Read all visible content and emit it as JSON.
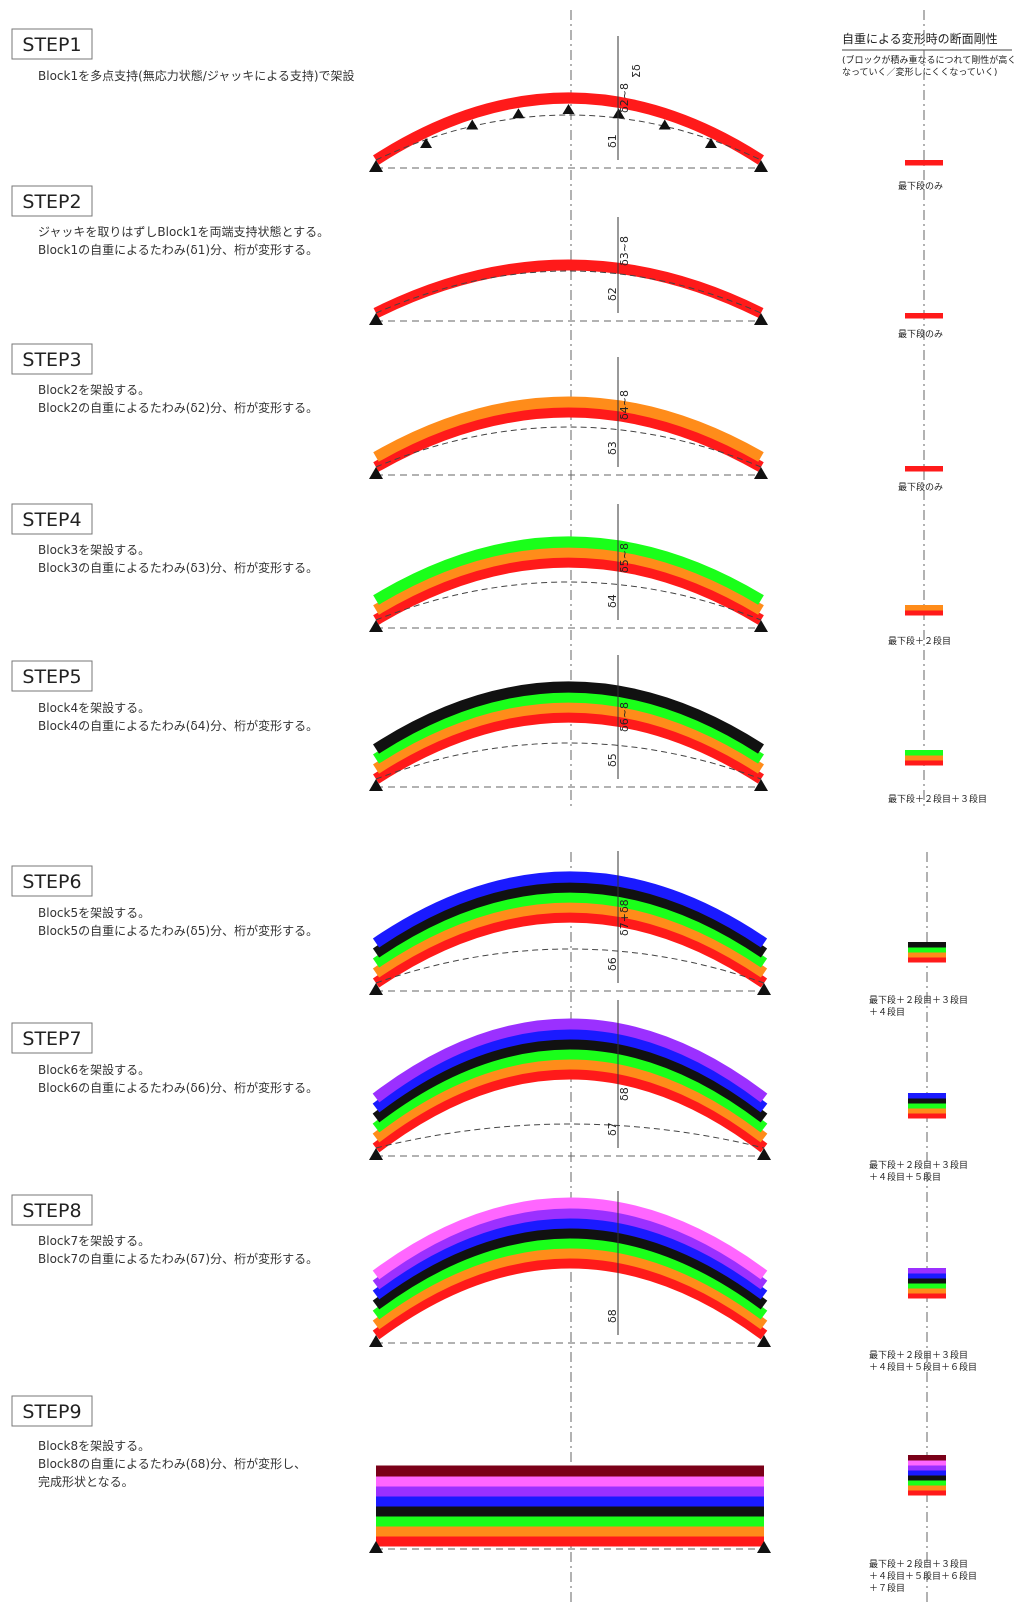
{
  "header": {
    "title": "自重による変形時の断面剛性",
    "note_lines": [
      "(ブロックが積み重なるにつれて剛性が高く",
      "なっていく／変形しにくくなっていく)"
    ]
  },
  "colors": {
    "block1": "#ff1a1a",
    "block2": "#ff8c1a",
    "block3": "#1aff1a",
    "block4": "#111111",
    "block5": "#1a1aff",
    "block6": "#9b30ff",
    "block7": "#ff66ff",
    "block8": "#7a0018"
  },
  "steps": [
    {
      "label": "STEP1",
      "desc": [
        "Block1を多点支持(無応力状態/ジャッキによる支持)で架設"
      ],
      "dims": [
        "δ1",
        "δ2~8",
        "Σδ"
      ],
      "section_label": [
        "最下段のみ"
      ]
    },
    {
      "label": "STEP2",
      "desc": [
        "ジャッキを取りはずしBlock1を両端支持状態とする。",
        "Block1の自重によるたわみ(δ1)分、桁が変形する。"
      ],
      "dims": [
        "δ2",
        "δ3~8"
      ],
      "section_label": [
        "最下段のみ"
      ]
    },
    {
      "label": "STEP3",
      "desc": [
        "Block2を架設する。",
        "Block2の自重によるたわみ(δ2)分、桁が変形する。"
      ],
      "dims": [
        "δ3",
        "δ4~8"
      ],
      "section_label": [
        "最下段のみ"
      ]
    },
    {
      "label": "STEP4",
      "desc": [
        "Block3を架設する。",
        "Block3の自重によるたわみ(δ3)分、桁が変形する。"
      ],
      "dims": [
        "δ4",
        "δ5~8"
      ],
      "section_label": [
        "最下段＋２段目"
      ]
    },
    {
      "label": "STEP5",
      "desc": [
        "Block4を架設する。",
        "Block4の自重によるたわみ(δ4)分、桁が変形する。"
      ],
      "dims": [
        "δ5",
        "δ6~8"
      ],
      "section_label": [
        "最下段＋２段目＋３段目"
      ]
    },
    {
      "label": "STEP6",
      "desc": [
        "Block5を架設する。",
        "Block5の自重によるたわみ(δ5)分、桁が変形する。"
      ],
      "dims": [
        "δ6",
        "δ7+δ8"
      ],
      "section_label": [
        "最下段＋２段目＋３段目",
        "＋４段目"
      ]
    },
    {
      "label": "STEP7",
      "desc": [
        "Block6を架設する。",
        "Block6の自重によるたわみ(δ6)分、桁が変形する。"
      ],
      "dims": [
        "δ7",
        "δ8"
      ],
      "section_label": [
        "最下段＋２段目＋３段目",
        "＋４段目＋５段目"
      ]
    },
    {
      "label": "STEP8",
      "desc": [
        "Block7を架設する。",
        "Block7の自重によるたわみ(δ7)分、桁が変形する。"
      ],
      "dims": [
        "δ8"
      ],
      "section_label": [
        "最下段＋２段目＋３段目",
        "＋４段目＋５段目＋６段目"
      ]
    },
    {
      "label": "STEP9",
      "desc": [
        "Block8を架設する。",
        "Block8の自重によるたわみ(δ8)分、桁が変形し、",
        "完成形状となる。"
      ],
      "dims": [],
      "section_label": [
        "最下段＋２段目＋３段目",
        "＋４段目＋５段目＋６段目",
        "＋７段目"
      ]
    }
  ]
}
